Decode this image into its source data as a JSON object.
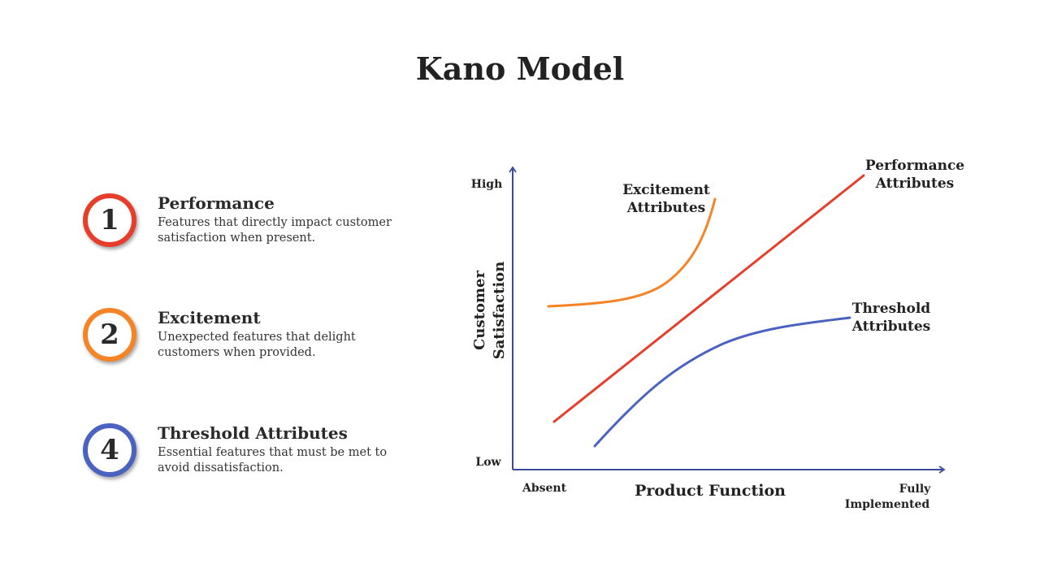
{
  "title": "Kano Model",
  "colors": {
    "performance": "#e63e2b",
    "excitement": "#f58426",
    "threshold": "#4a62c0",
    "axis": "#3c4a9a"
  },
  "list": [
    {
      "number": "1",
      "title": "Performance",
      "description": "Features that directly impact customer satisfaction when present.",
      "color": "#e63e2b"
    },
    {
      "number": "2",
      "title": "Excitement",
      "description": "Unexpected features that delight customers when provided.",
      "color": "#f58426"
    },
    {
      "number": "4",
      "title": "Threshold Attributes",
      "description": "Essential features that must be met to avoid dissatisfaction.",
      "color": "#4a62c0"
    }
  ],
  "diagram": {
    "y_axis_label_line1": "Customer",
    "y_axis_label_line2": "Satisfaction",
    "y_high": "High",
    "y_low": "Low",
    "x_axis_label": "Product Function",
    "x_start": "Absent",
    "x_end_line1": "Fully",
    "x_end_line2": "Implemented",
    "curves": {
      "excitement_line1": "Excitement",
      "excitement_line2": "Attributes",
      "performance_line1": "Performance",
      "performance_line2": "Attributes",
      "threshold_line1": "Threshold",
      "threshold_line2": "Attributes"
    }
  }
}
